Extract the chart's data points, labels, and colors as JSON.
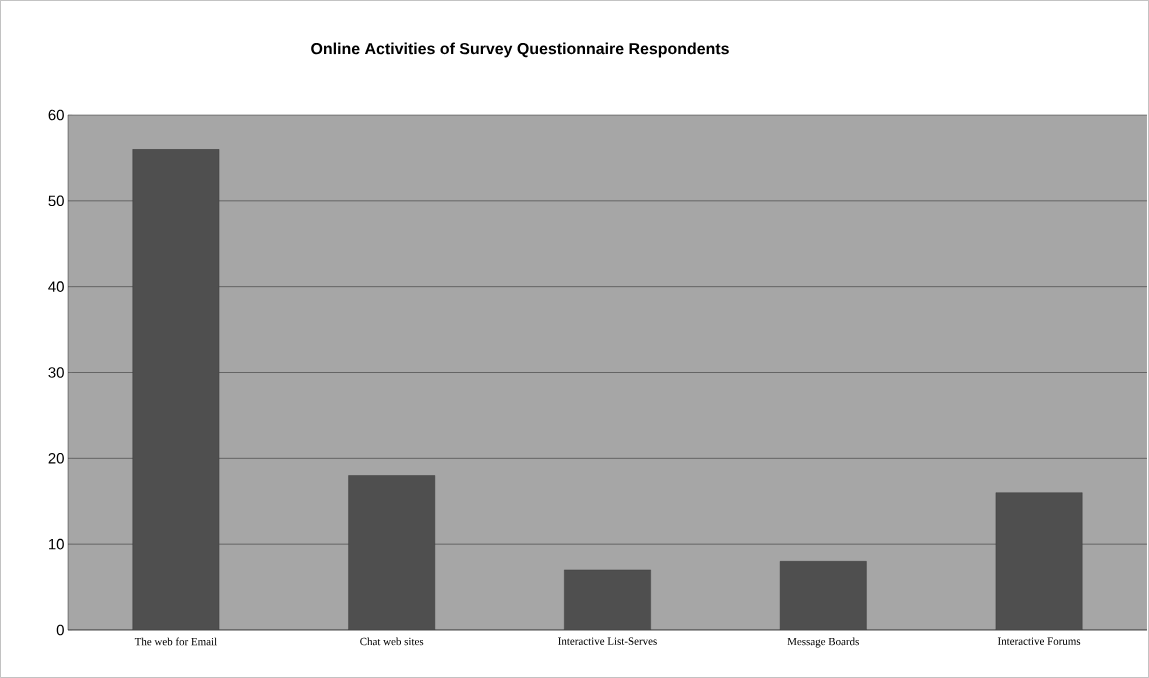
{
  "chart_data": {
    "type": "bar",
    "title": "Online Activities of Survey Questionnaire Respondents",
    "categories": [
      "The web for Email",
      "Chat web sites",
      "Interactive List-Serves",
      "Message Boards",
      "Interactive Forums"
    ],
    "values": [
      56,
      18,
      7,
      8,
      16
    ],
    "color": "#4f4f4f",
    "ylim": [
      0,
      60
    ],
    "yticks": [
      0,
      10,
      20,
      30,
      40,
      50,
      60
    ],
    "grid": "y"
  }
}
